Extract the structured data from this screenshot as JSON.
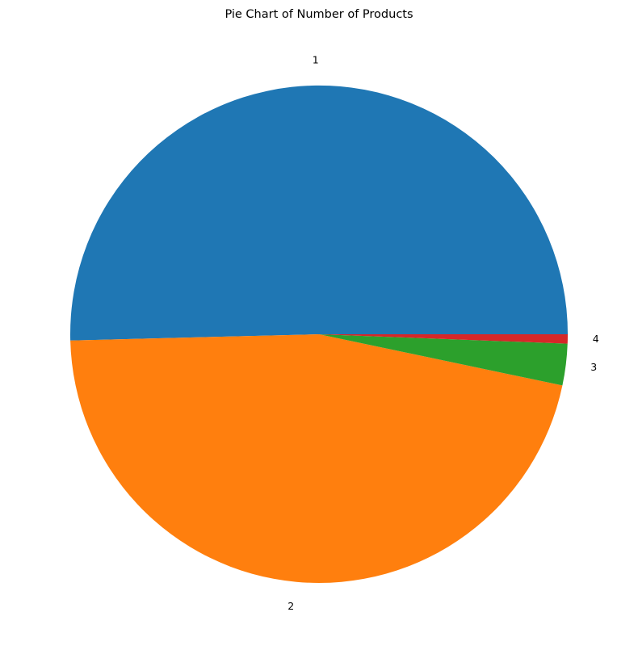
{
  "chart_data": {
    "type": "pie",
    "title": "Pie Chart of Number of Products",
    "categories": [
      "1",
      "2",
      "3",
      "4"
    ],
    "values": [
      50.4,
      46.3,
      2.7,
      0.6
    ],
    "colors": [
      "#1f77b4",
      "#ff7f0e",
      "#2ca02c",
      "#d62728"
    ],
    "start_angle_deg": 0,
    "direction": "counterclockwise"
  }
}
